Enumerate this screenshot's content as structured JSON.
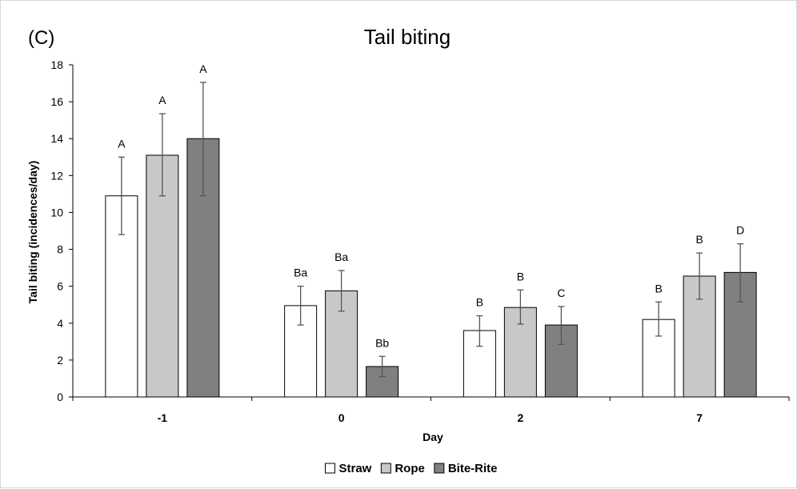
{
  "chart_data": {
    "type": "bar",
    "panel_label": "(C)",
    "title": "Tail biting",
    "xlabel": "Day",
    "ylabel": "Tail biting (incidences/day)",
    "ylim": [
      0,
      18
    ],
    "yticks": [
      0,
      2,
      4,
      6,
      8,
      10,
      12,
      14,
      16,
      18
    ],
    "grid": false,
    "legend_position": "bottom",
    "categories": [
      "-1",
      "0",
      "2",
      "7"
    ],
    "series": [
      {
        "name": "Straw",
        "color": "#ffffff",
        "values": [
          10.9,
          4.95,
          3.6,
          4.2
        ],
        "error_low": [
          8.8,
          3.9,
          2.75,
          3.3
        ],
        "error_high": [
          13.0,
          6.0,
          4.4,
          5.15
        ],
        "labels": [
          "A",
          "Ba",
          "B",
          "B"
        ]
      },
      {
        "name": "Rope",
        "color": "#c8c8c8",
        "values": [
          13.1,
          5.75,
          4.85,
          6.55
        ],
        "error_low": [
          10.9,
          4.65,
          3.95,
          5.3
        ],
        "error_high": [
          15.35,
          6.85,
          5.8,
          7.8
        ],
        "labels": [
          "A",
          "Ba",
          "B",
          "B"
        ]
      },
      {
        "name": "Bite-Rite",
        "color": "#808080",
        "values": [
          14.0,
          1.65,
          3.9,
          6.75
        ],
        "error_low": [
          10.9,
          1.1,
          2.85,
          5.15
        ],
        "error_high": [
          17.05,
          2.2,
          4.9,
          8.3
        ],
        "labels": [
          "A",
          "Bb",
          "C",
          "D"
        ]
      }
    ]
  }
}
